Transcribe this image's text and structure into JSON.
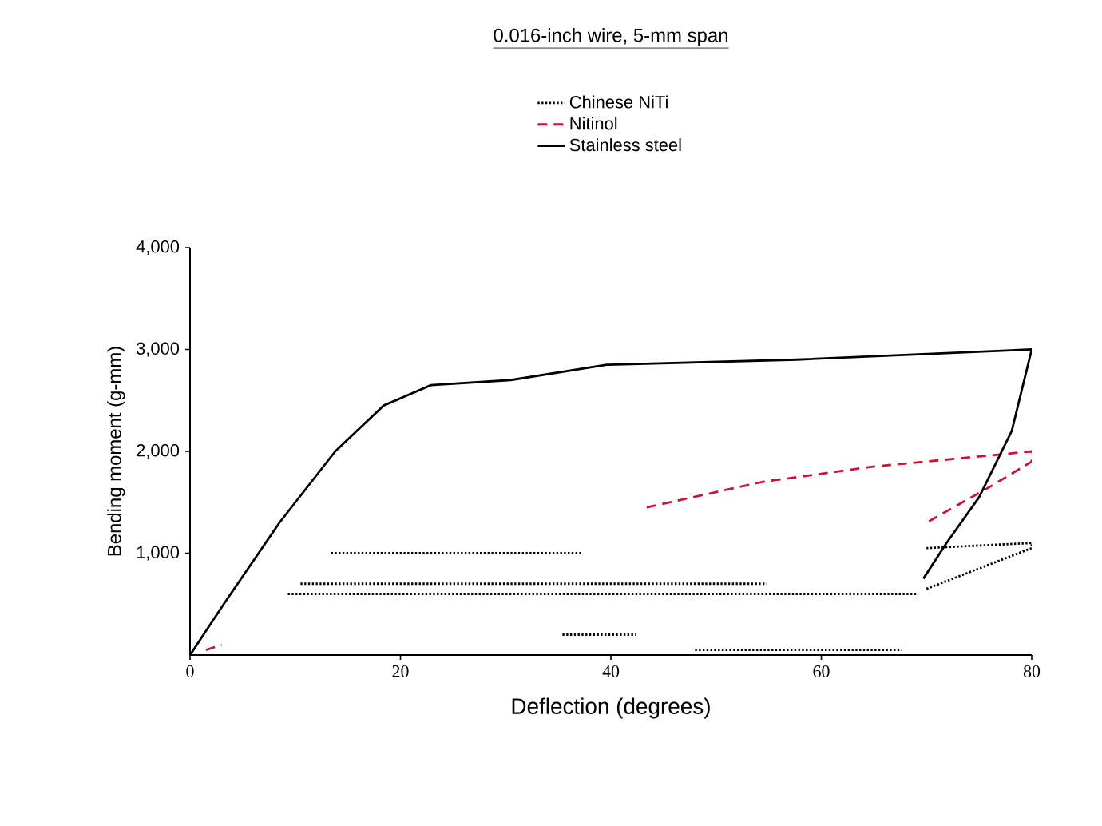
{
  "chart_data": {
    "type": "line",
    "title": "0.016-inch wire, 5-mm span",
    "xlabel": "Deflection (degrees)",
    "ylabel": "Bending moment (g-mm)",
    "xlim": [
      0,
      80
    ],
    "xticks": [
      0,
      20,
      40,
      60,
      80
    ],
    "ylim": [
      0,
      4000
    ],
    "yticks": [
      {
        "value": 1000,
        "label": "1,000"
      },
      {
        "value": 2000,
        "label": "2,000"
      },
      {
        "value": 3000,
        "label": "3,000"
      },
      {
        "value": 4000,
        "label": "4,000"
      }
    ],
    "grid": false,
    "legend": "top",
    "marker": "none",
    "series": [
      {
        "name": "Chinese NiTi",
        "color": "#000000",
        "line_style": "dotted",
        "x": [
          13.4,
          37.3,
          null,
          10.5,
          54.8,
          null,
          9.3,
          69.2,
          null,
          35.4,
          42.4,
          null,
          48,
          67.7,
          null,
          70,
          80,
          80,
          70
        ],
        "values": [
          1000,
          1000,
          null,
          700,
          700,
          null,
          600,
          600,
          null,
          200,
          200,
          null,
          50,
          50,
          null,
          650,
          1050,
          1100,
          1050
        ]
      },
      {
        "name": "Nitinol",
        "color": "#cc1133",
        "line_style": "dashed",
        "x": [
          1.5,
          3,
          null,
          43.4,
          54.4,
          64.9,
          75,
          80,
          80,
          76,
          70
        ],
        "values": [
          50,
          100,
          null,
          1450,
          1700,
          1850,
          1950,
          2000,
          1900,
          1650,
          1300
        ]
      },
      {
        "name": "Stainless steel",
        "color": "#000000",
        "line_style": "solid",
        "x": [
          0,
          3.2,
          8.5,
          13.8,
          18.4,
          22.9,
          30.5,
          39.6,
          57.7,
          80,
          78.1,
          75,
          71.9,
          69.7
        ],
        "values": [
          0,
          500,
          1300,
          2000,
          2450,
          2650,
          2700,
          2850,
          2900,
          3000,
          2200,
          1550,
          1100,
          750
        ]
      }
    ]
  }
}
